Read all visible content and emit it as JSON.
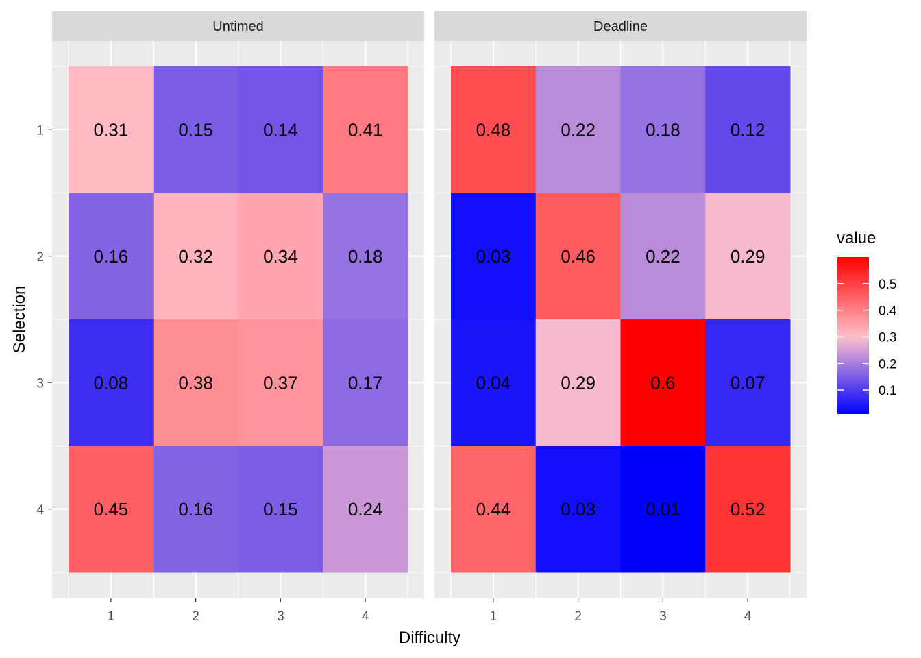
{
  "chart_data": {
    "type": "heatmap",
    "xlabel": "Difficulty",
    "ylabel": "Selection",
    "x_categories": [
      "1",
      "2",
      "3",
      "4"
    ],
    "y_categories": [
      "1",
      "2",
      "3",
      "4"
    ],
    "facets": [
      {
        "title": "Untimed",
        "values": [
          [
            0.31,
            0.15,
            0.14,
            0.41
          ],
          [
            0.16,
            0.32,
            0.34,
            0.18
          ],
          [
            0.08,
            0.38,
            0.37,
            0.17
          ],
          [
            0.45,
            0.16,
            0.15,
            0.24
          ]
        ],
        "labels": [
          [
            "0.31",
            "0.15",
            "0.14",
            "0.41"
          ],
          [
            "0.16",
            "0.32",
            "0.34",
            "0.18"
          ],
          [
            "0.08",
            "0.38",
            "0.37",
            "0.17"
          ],
          [
            "0.45",
            "0.16",
            "0.15",
            "0.24"
          ]
        ]
      },
      {
        "title": "Deadline",
        "values": [
          [
            0.48,
            0.22,
            0.18,
            0.12
          ],
          [
            0.03,
            0.46,
            0.22,
            0.29
          ],
          [
            0.04,
            0.29,
            0.6,
            0.07
          ],
          [
            0.44,
            0.03,
            0.01,
            0.52
          ]
        ],
        "labels": [
          [
            "0.48",
            "0.22",
            "0.18",
            "0.12"
          ],
          [
            "0.03",
            "0.46",
            "0.22",
            "0.29"
          ],
          [
            "0.04",
            "0.29",
            "0.6",
            "0.07"
          ],
          [
            "0.44",
            "0.03",
            "0.01",
            "0.52"
          ]
        ]
      }
    ],
    "legend": {
      "title": "value",
      "ticks": [
        0.1,
        0.2,
        0.3,
        0.4,
        0.5
      ],
      "tick_labels": [
        "0.1",
        "0.2",
        "0.3",
        "0.4",
        "0.5"
      ],
      "range": [
        0.01,
        0.6
      ],
      "placement": "right"
    },
    "color_scale": {
      "low": "#0000ff",
      "mid": "#ffc0cb",
      "high": "#ff0000",
      "midpoint": 0.3
    },
    "grid": true
  }
}
